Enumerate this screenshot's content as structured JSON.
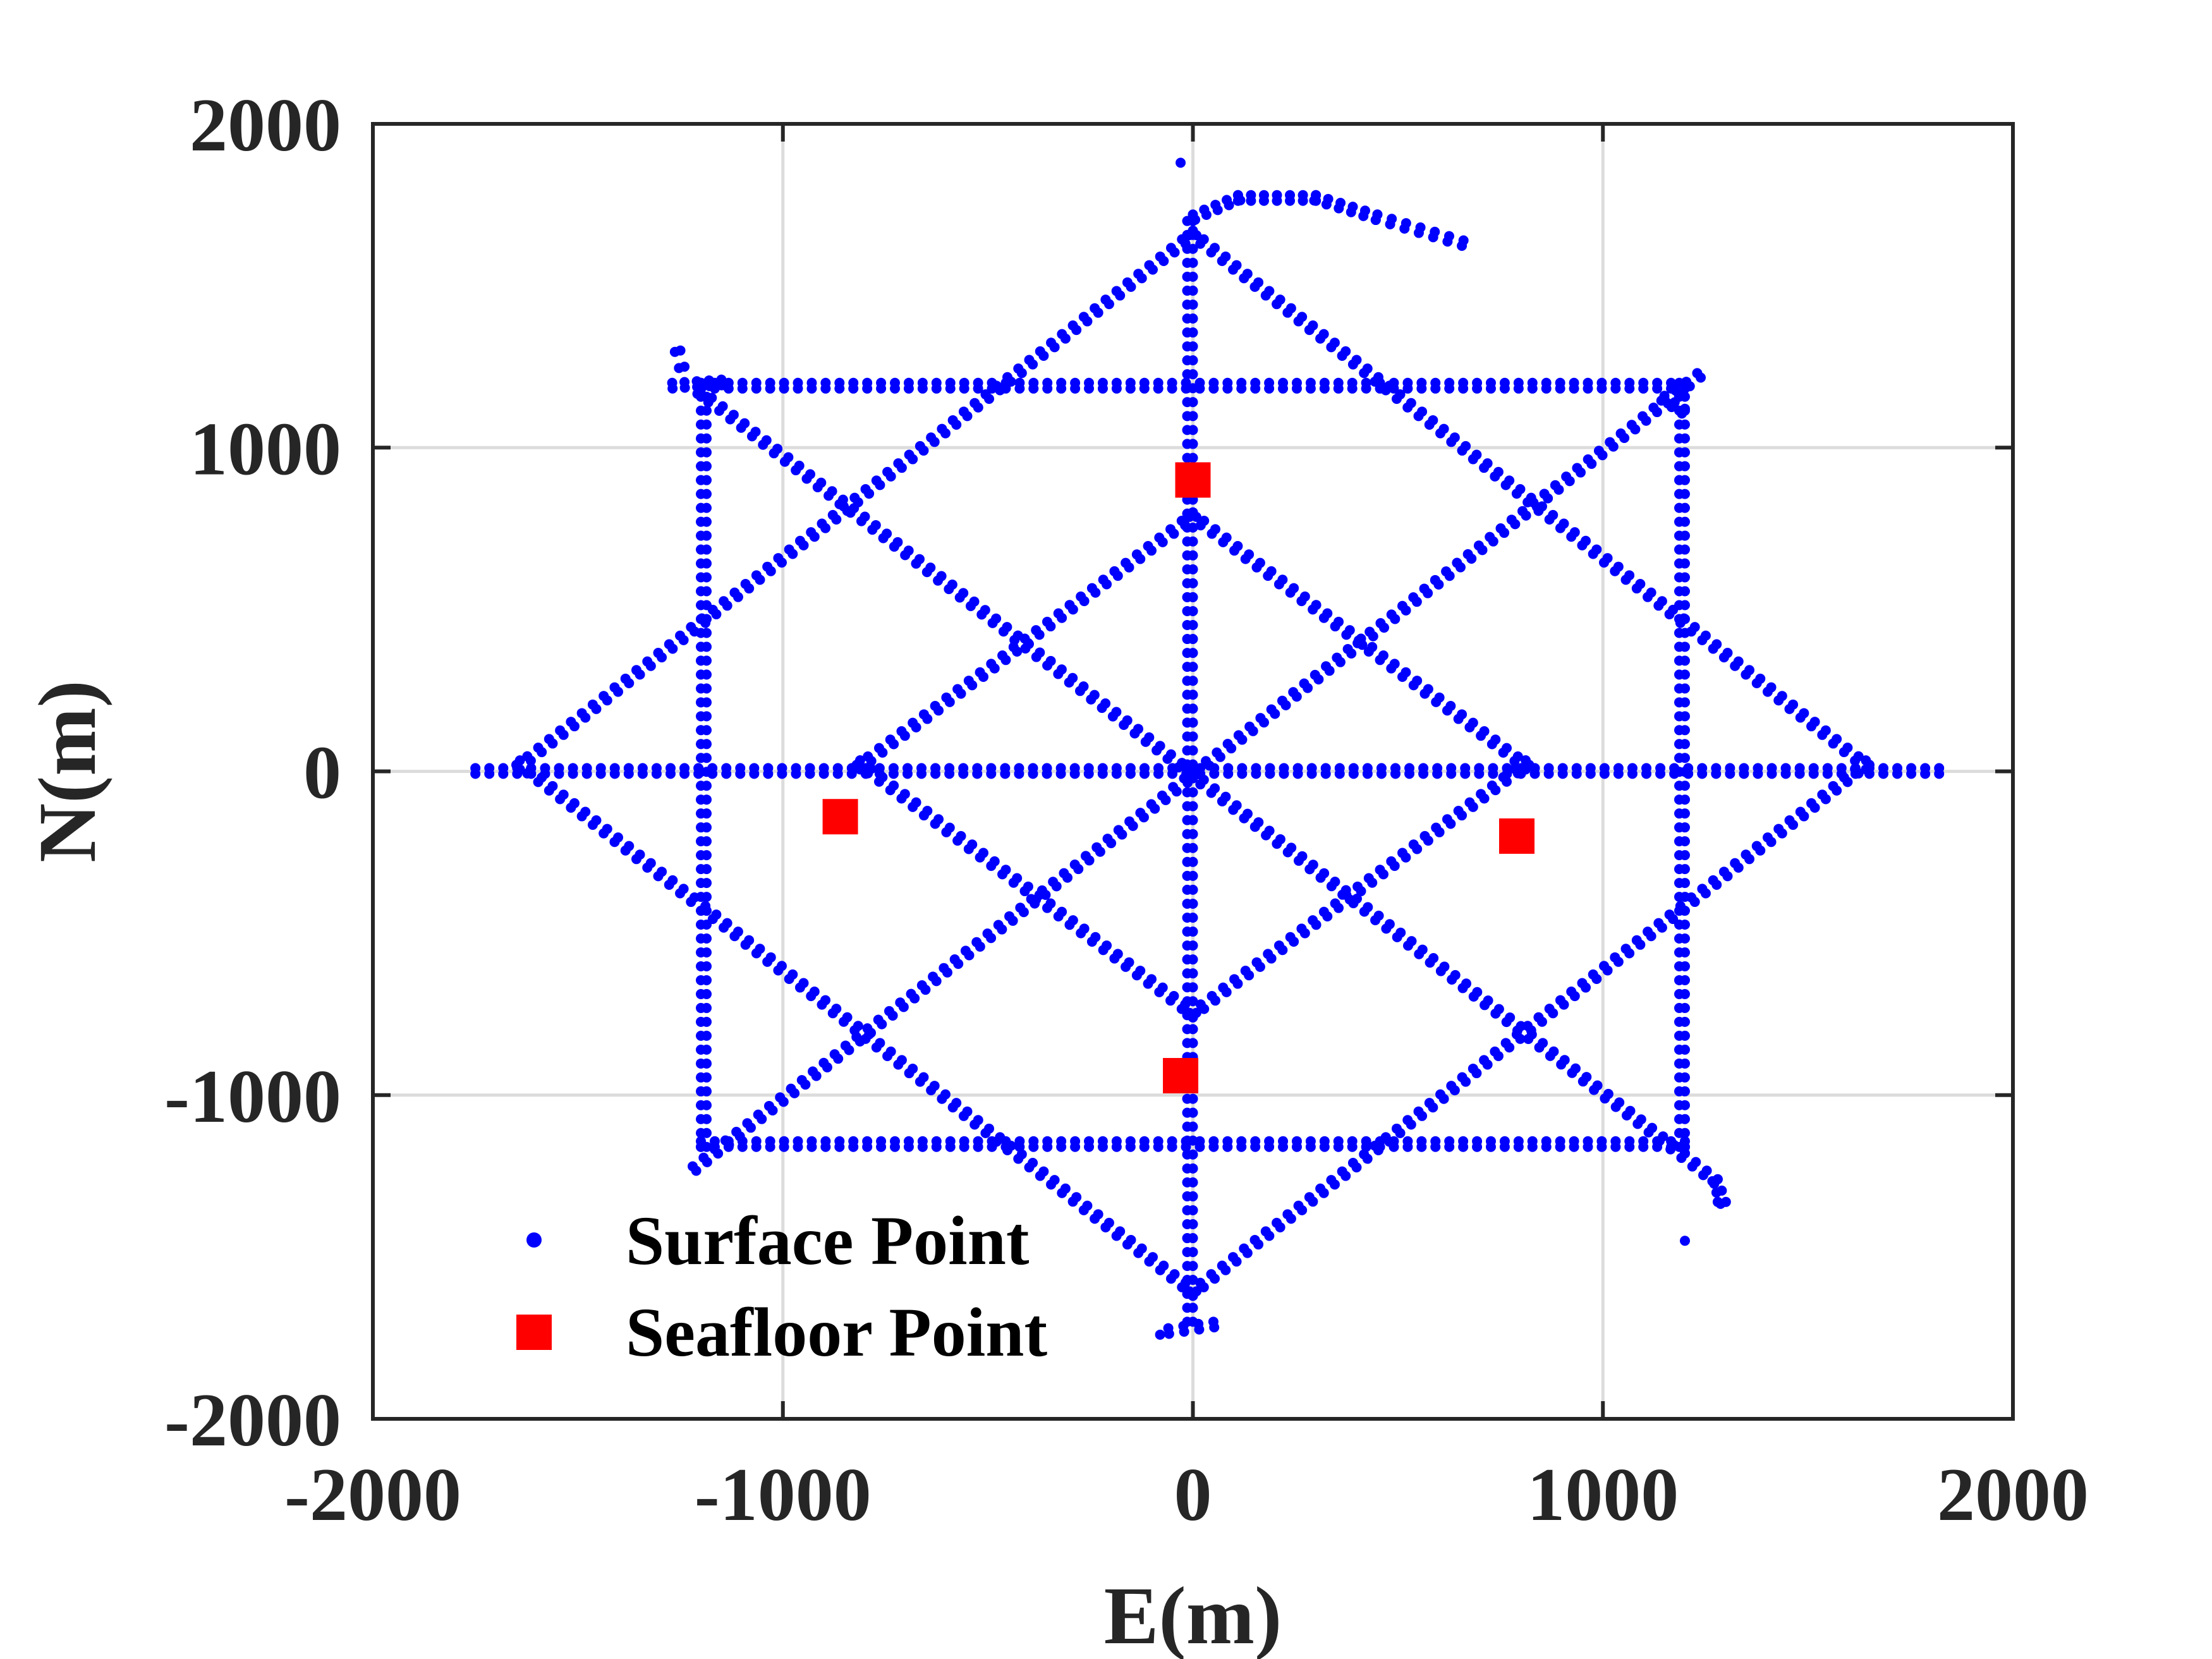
{
  "chart_data": {
    "type": "scatter",
    "xlabel": "E(m)",
    "ylabel": "N(m)",
    "xlim": [
      -2000,
      2000
    ],
    "ylim": [
      -2000,
      2000
    ],
    "xticks": [
      -2000,
      -1000,
      0,
      1000,
      2000
    ],
    "yticks": [
      -2000,
      -1000,
      0,
      1000,
      2000
    ],
    "xtick_labels": [
      "-2000",
      "-1000",
      "0",
      "1000",
      "2000"
    ],
    "ytick_labels": [
      "-2000",
      "-1000",
      "0",
      "1000",
      "2000"
    ],
    "grid": true,
    "legend_position": "bottom-left",
    "colors": {
      "surface": "#0000ff",
      "seafloor": "#ff0000",
      "grid": "#dcdcdc",
      "axes": "#262626"
    },
    "series": [
      {
        "name": "Surface Point",
        "marker": "dot",
        "color": "#0000ff",
        "tracks": [
          {
            "kind": "line",
            "points": [
              [
                -1750,
                10
              ],
              [
                1820,
                10
              ]
            ]
          },
          {
            "kind": "line",
            "points": [
              [
                0,
                1700
              ],
              [
                0,
                -1700
              ]
            ]
          },
          {
            "kind": "line",
            "points": [
              [
                -1200,
                1200
              ],
              [
                1200,
                1200
              ],
              [
                1200,
                -1160
              ],
              [
                -1200,
                -1160
              ],
              [
                -1200,
                1200
              ]
            ]
          },
          {
            "kind": "line",
            "points": [
              [
                0,
                1670
              ],
              [
                1650,
                20
              ],
              [
                0,
                -1620
              ],
              [
                -1650,
                20
              ],
              [
                0,
                1670
              ]
            ]
          },
          {
            "kind": "line",
            "points": [
              [
                0,
                800
              ],
              [
                820,
                20
              ],
              [
                0,
                -760
              ],
              [
                -820,
                20
              ],
              [
                0,
                800
              ]
            ]
          },
          {
            "kind": "line",
            "points": [
              [
                -1200,
                1180
              ],
              [
                1200,
                -1180
              ]
            ]
          },
          {
            "kind": "line",
            "points": [
              [
                -1220,
                -1220
              ],
              [
                1230,
                1230
              ]
            ]
          },
          {
            "kind": "line",
            "points": [
              [
                -1250,
                1300
              ],
              [
                -1240,
                1250
              ]
            ]
          },
          {
            "kind": "line",
            "points": [
              [
                -1270,
                1200
              ],
              [
                -1150,
                1210
              ]
            ]
          },
          {
            "kind": "line",
            "points": [
              [
                1150,
                1160
              ],
              [
                1200,
                1120
              ]
            ]
          },
          {
            "kind": "line",
            "points": [
              [
                1200,
                -1180
              ],
              [
                1280,
                -1260
              ],
              [
                1300,
                -1330
              ]
            ]
          },
          {
            "kind": "line",
            "points": [
              [
                0,
                1720
              ],
              [
                110,
                1780
              ],
              [
                300,
                1780
              ],
              [
                450,
                1720
              ],
              [
                660,
                1640
              ]
            ]
          },
          {
            "kind": "line",
            "points": [
              [
                -60,
                -1720
              ],
              [
                50,
                -1700
              ]
            ]
          },
          {
            "kind": "points",
            "points": [
              [
                -30,
                1880
              ],
              [
                1200,
                -1450
              ],
              [
                -80,
                -1740
              ],
              [
                1280,
                -1330
              ]
            ]
          }
        ]
      },
      {
        "name": "Seafloor Point",
        "marker": "square",
        "color": "#ff0000",
        "x": [
          0,
          -860,
          790,
          -30
        ],
        "y": [
          900,
          -140,
          -200,
          -940
        ]
      }
    ]
  }
}
